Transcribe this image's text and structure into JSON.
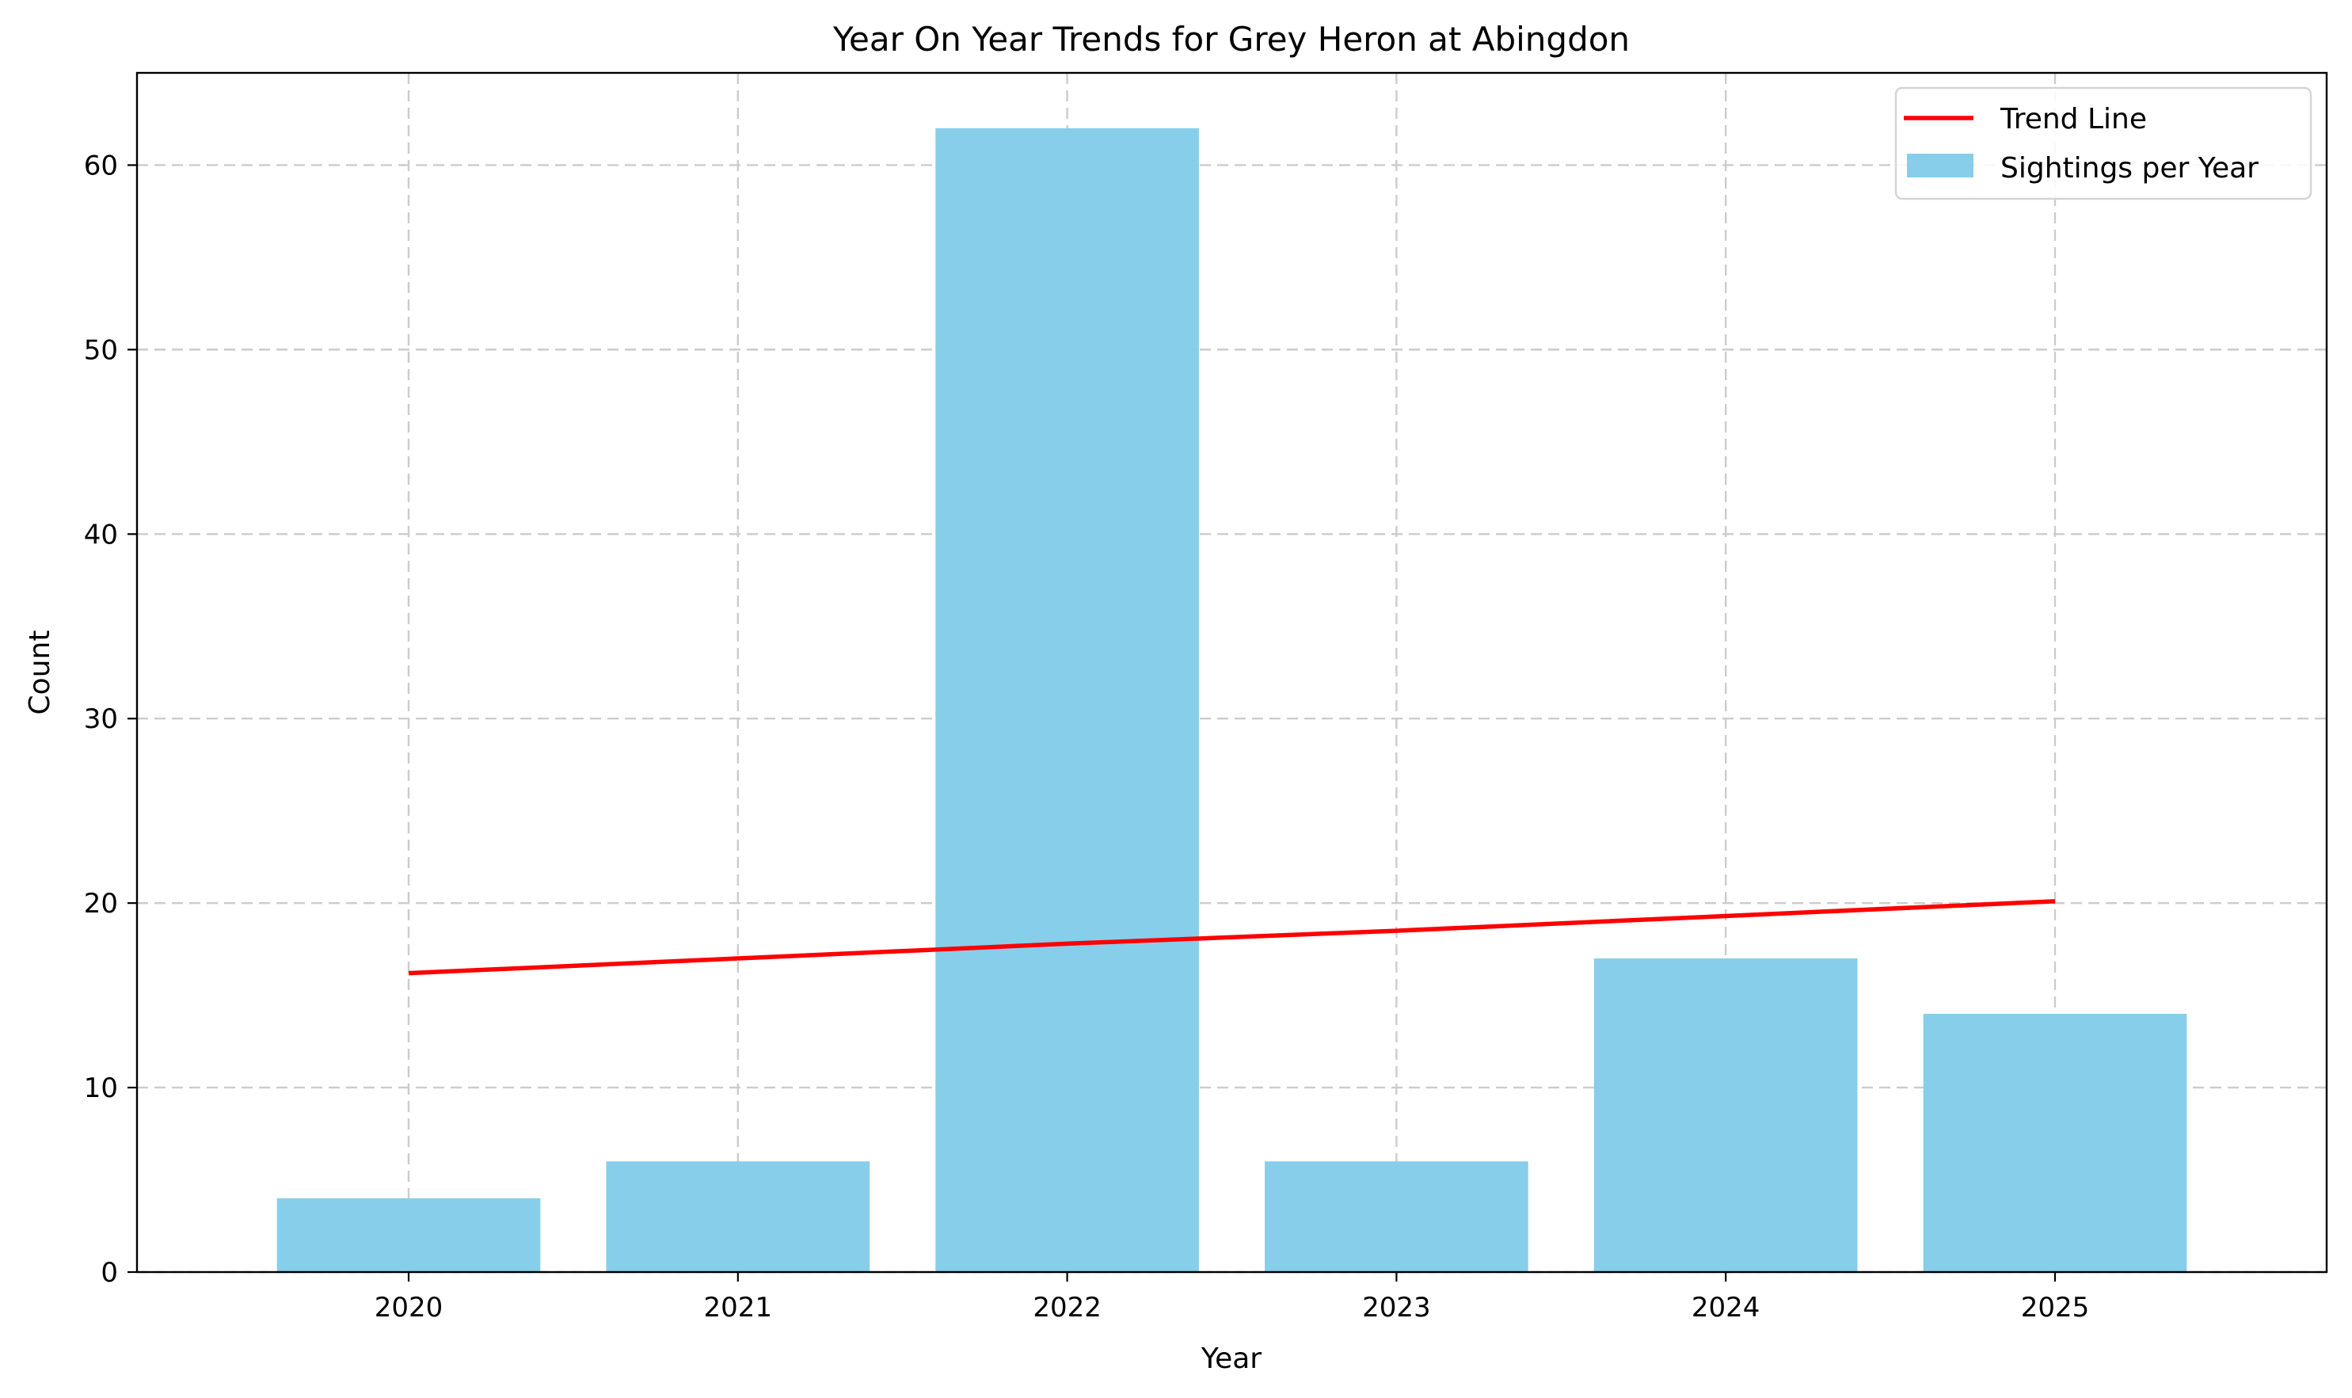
{
  "chart_data": {
    "type": "bar",
    "title": "Year On Year Trends for Grey Heron at Abingdon",
    "xlabel": "Year",
    "ylabel": "Count",
    "categories": [
      "2020",
      "2021",
      "2022",
      "2023",
      "2024",
      "2025"
    ],
    "ylim": [
      0,
      65
    ],
    "yticks": [
      0,
      10,
      20,
      30,
      40,
      50,
      60
    ],
    "grid": true,
    "legend_position": "top-right",
    "series": [
      {
        "name": "Sightings per Year",
        "type": "bar",
        "color": "#87ceeb",
        "values": [
          4,
          6,
          62,
          6,
          17,
          14
        ]
      },
      {
        "name": "Trend Line",
        "type": "line",
        "color": "#ff0000",
        "values": [
          16.2,
          17.0,
          17.8,
          18.5,
          19.3,
          20.1
        ]
      }
    ]
  }
}
